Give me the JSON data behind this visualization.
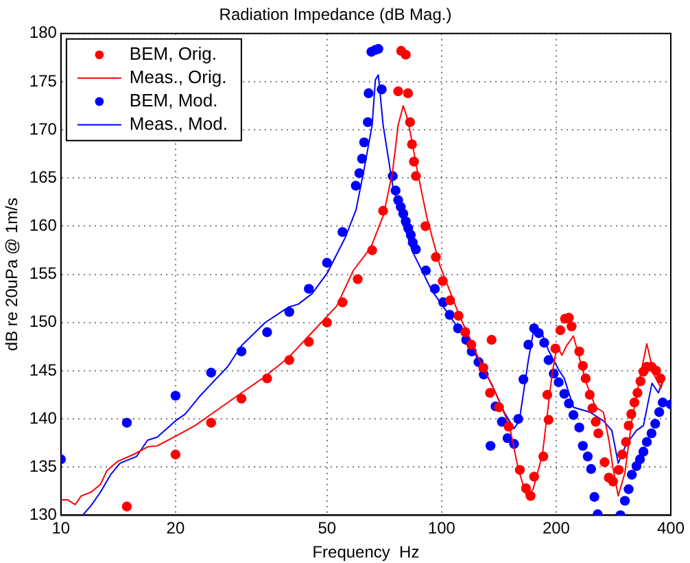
{
  "chart_data": {
    "type": "line",
    "title": "Radiation Impedance (dB Mag.)",
    "xlabel": "Frequency  Hz",
    "ylabel": "dB re 20uPa @ 1m/s",
    "log": "x",
    "xlim": [
      10,
      400
    ],
    "xticks": [
      10,
      20,
      50,
      100,
      200,
      400
    ],
    "ylim": [
      130,
      180
    ],
    "yticks": [
      130,
      135,
      140,
      145,
      150,
      155,
      160,
      165,
      170,
      175,
      180
    ],
    "grid": true,
    "legend": "top left",
    "series": [
      {
        "name": "BEM, Orig.",
        "type": "scatter",
        "marker": "circle",
        "color": "#ff0000",
        "x": [
          14.9,
          20,
          24.8,
          29.8,
          34.8,
          39.8,
          44.8,
          50,
          54.9,
          60.2,
          65.7,
          70.2,
          76.9,
          78.3,
          80.5,
          81.6,
          82.6,
          83.6,
          84.6,
          85.6,
          90.7,
          96.6,
          100.7,
          105.3,
          110.8,
          115.4,
          119.7,
          128.7,
          134,
          135.3,
          141.5,
          150,
          160.5,
          166.6,
          171.3,
          175,
          185,
          189.5,
          191,
          199,
          205,
          211,
          216,
          219.5,
          230,
          235,
          239,
          245,
          249,
          254,
          258,
          268,
          275,
          282,
          292,
          298,
          305,
          310,
          315,
          321,
          327,
          333,
          339,
          346,
          356,
          366,
          376
        ],
        "values": [
          130.9,
          136.3,
          139.6,
          142.1,
          144.2,
          146.1,
          148.0,
          150.0,
          152.1,
          154.5,
          157.5,
          161.6,
          174.0,
          178.2,
          177.8,
          173.8,
          170.8,
          168.5,
          166.7,
          165.2,
          160.0,
          156.8,
          154.3,
          152.3,
          150.7,
          149.0,
          147.7,
          145.3,
          142.7,
          148.2,
          141.2,
          139.2,
          134.7,
          132.8,
          132.0,
          134.0,
          136.1,
          142.5,
          139.9,
          147.3,
          149.2,
          150.4,
          150.5,
          149.6,
          147.0,
          145.5,
          144.2,
          142.5,
          141.1,
          139.7,
          138.5,
          135.5,
          133.9,
          133.5,
          134.7,
          136.3,
          137.6,
          139.3,
          140.5,
          141.7,
          142.7,
          143.9,
          144.9,
          145.4,
          145.4,
          145.0,
          144.2
        ]
      },
      {
        "name": "Meas., Orig.",
        "type": "line",
        "marker": "none",
        "color": "#ff0000",
        "x": [
          10,
          10.4,
          10.9,
          11.3,
          12.0,
          12.7,
          13.2,
          14.1,
          15.5,
          16.9,
          17.9,
          20,
          22.5,
          25.9,
          29.8,
          34.4,
          39.7,
          47,
          53,
          58.6,
          65.2,
          70.4,
          74.3,
          76.9,
          79.3,
          81.6,
          86.5,
          91.6,
          99.0,
          110.6,
          124,
          138.6,
          150.7,
          158.8,
          167,
          174,
          184,
          195,
          201,
          207,
          213,
          222,
          240,
          254,
          266,
          275,
          282,
          291,
          303,
          316,
          333,
          346,
          361,
          377,
          383
        ],
        "values": [
          131.6,
          131.6,
          131.1,
          132.0,
          132.4,
          133.2,
          134.6,
          135.6,
          136.3,
          137.1,
          137.2,
          138.2,
          139.3,
          141.0,
          142.7,
          144.4,
          146.4,
          149.5,
          151.7,
          155.4,
          157.8,
          161.2,
          165.6,
          170.5,
          172.5,
          171.0,
          165.6,
          160.8,
          155.9,
          151.0,
          146.6,
          142.7,
          139.3,
          134.9,
          132.0,
          132.7,
          136.3,
          144.6,
          147.6,
          146.6,
          147.6,
          148.6,
          143.7,
          141.2,
          140.7,
          137.8,
          134.9,
          132.0,
          134.4,
          139.8,
          144.6,
          147.8,
          144.6,
          143.2,
          144.2
        ]
      },
      {
        "name": "BEM, Mod.",
        "type": "scatter",
        "marker": "circle",
        "color": "#0000ff",
        "x": [
          10,
          14.9,
          20,
          24.8,
          29.8,
          34.8,
          39.8,
          44.8,
          50,
          54.9,
          59.5,
          60.8,
          61.8,
          62.6,
          64,
          64.3,
          65.4,
          67,
          68.2,
          69.6,
          74.4,
          75.7,
          76.9,
          78.1,
          79.3,
          80.5,
          81.7,
          83,
          84,
          85.6,
          90.9,
          96,
          101,
          105,
          110.4,
          116,
          120,
          125,
          129,
          134.4,
          138.6,
          144,
          149,
          155,
          159,
          164,
          169,
          175,
          180,
          186,
          191,
          197,
          203,
          210,
          216,
          222,
          230,
          235,
          242,
          247,
          252,
          257,
          295,
          303,
          310,
          316,
          325,
          332,
          339,
          346,
          356,
          364,
          373,
          381,
          400
        ],
        "values": [
          135.8,
          139.6,
          142.4,
          144.8,
          147.0,
          149.0,
          151.1,
          153.5,
          156.2,
          159.4,
          164.2,
          165.5,
          167.0,
          168.7,
          170.8,
          173.8,
          178.1,
          178.3,
          178.4,
          174.2,
          165.2,
          163.7,
          162.7,
          162.0,
          161.3,
          160.5,
          159.8,
          159.1,
          158.3,
          157.6,
          155.4,
          153.5,
          152.1,
          150.8,
          149.4,
          148.2,
          147.0,
          145.9,
          144.6,
          137.2,
          141.3,
          139.7,
          138.0,
          137.4,
          140.0,
          144.1,
          147.7,
          149.4,
          148.9,
          147.9,
          146.1,
          144.7,
          143.8,
          142.6,
          141.6,
          140.4,
          139.1,
          137.2,
          136.1,
          134.8,
          131.9,
          130.1,
          130.0,
          131.5,
          132.7,
          134.2,
          135.1,
          135.8,
          136.6,
          137.6,
          138.5,
          139.5,
          140.7,
          141.7,
          141.5
        ]
      },
      {
        "name": "Meas., Mod.",
        "type": "line",
        "marker": "none",
        "color": "#0000ff",
        "x": [
          11.4,
          12.0,
          12.7,
          13.5,
          14.3,
          15.8,
          16.9,
          17.9,
          20,
          21.2,
          23.1,
          25.2,
          27.4,
          29.8,
          34.4,
          39.6,
          42,
          45.7,
          50,
          55.8,
          59.6,
          62.7,
          65.7,
          67,
          68.2,
          70.2,
          74.4,
          79.3,
          84,
          94,
          108,
          121,
          135,
          146,
          155,
          160,
          169,
          175,
          183,
          191,
          203,
          210,
          222,
          245,
          266,
          280,
          291,
          305,
          325,
          339,
          357,
          371,
          383
        ],
        "values": [
          130.0,
          131.0,
          132.4,
          134.2,
          135.4,
          136.1,
          137.8,
          138.1,
          139.8,
          140.5,
          142.3,
          143.9,
          145.4,
          147.6,
          150.0,
          151.6,
          151.9,
          153.0,
          155.1,
          158.8,
          161.7,
          166.1,
          170.5,
          175.2,
          175.7,
          170.5,
          164.2,
          160.3,
          157.3,
          153.4,
          150.0,
          147.1,
          143.7,
          140.7,
          139.0,
          139.8,
          146.1,
          149.5,
          149.0,
          147.1,
          145.1,
          144.2,
          141.2,
          140.7,
          139.8,
          138.8,
          135.4,
          137.3,
          138.8,
          139.3,
          143.7,
          142.7,
          144.2
        ]
      }
    ]
  }
}
